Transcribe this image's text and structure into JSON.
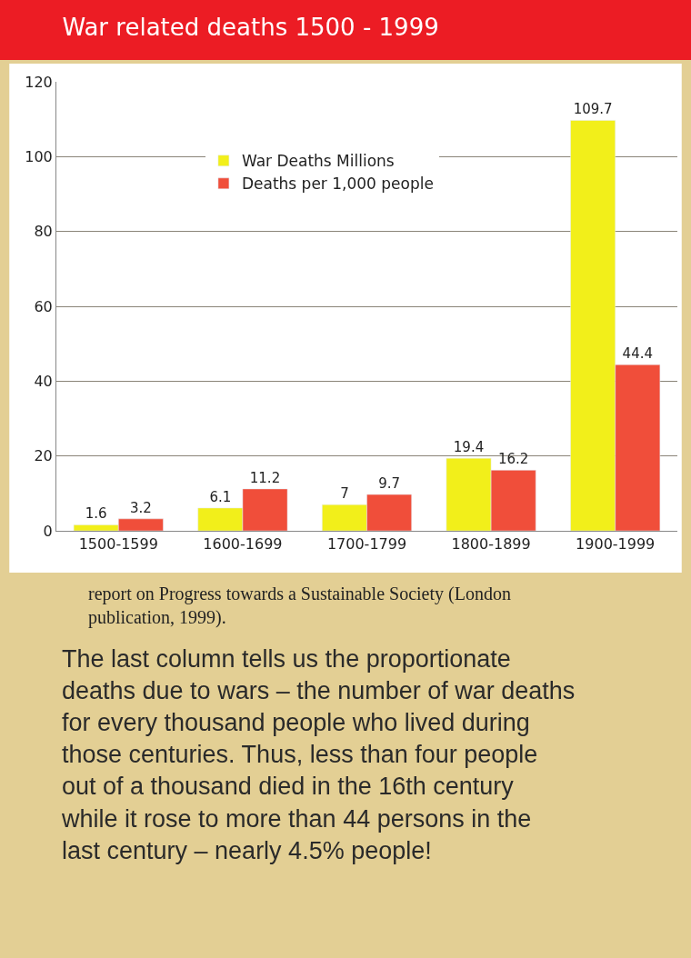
{
  "chart_data": {
    "type": "bar",
    "title": "War related deaths 1500 - 1999",
    "categories": [
      "1500-1599",
      "1600-1699",
      "1700-1799",
      "1800-1899",
      "1900-1999"
    ],
    "series": [
      {
        "name": "War Deaths Millions",
        "color": "#f2ef1a",
        "values": [
          1.6,
          6.1,
          7,
          19.4,
          109.7
        ]
      },
      {
        "name": "Deaths per 1,000 people",
        "color": "#f04e3a",
        "values": [
          3.2,
          11.2,
          9.7,
          16.2,
          44.4
        ]
      }
    ],
    "ylim": [
      0,
      120
    ],
    "yticks": [
      0,
      20,
      40,
      60,
      80,
      100,
      120
    ],
    "grid": "y",
    "legend": "top",
    "data_labels": true,
    "annotations": [
      "report on Progress towards a Sustainable Society (London publication, 1999).",
      "The last column tells us the proportionate deaths due to wars – the number of war deaths for every thousand people who lived during those centuries. Thus, less than four people out of a thousand died in the 16th century while it rose to more than 44 persons in the last century – nearly 4.5% people!"
    ]
  }
}
